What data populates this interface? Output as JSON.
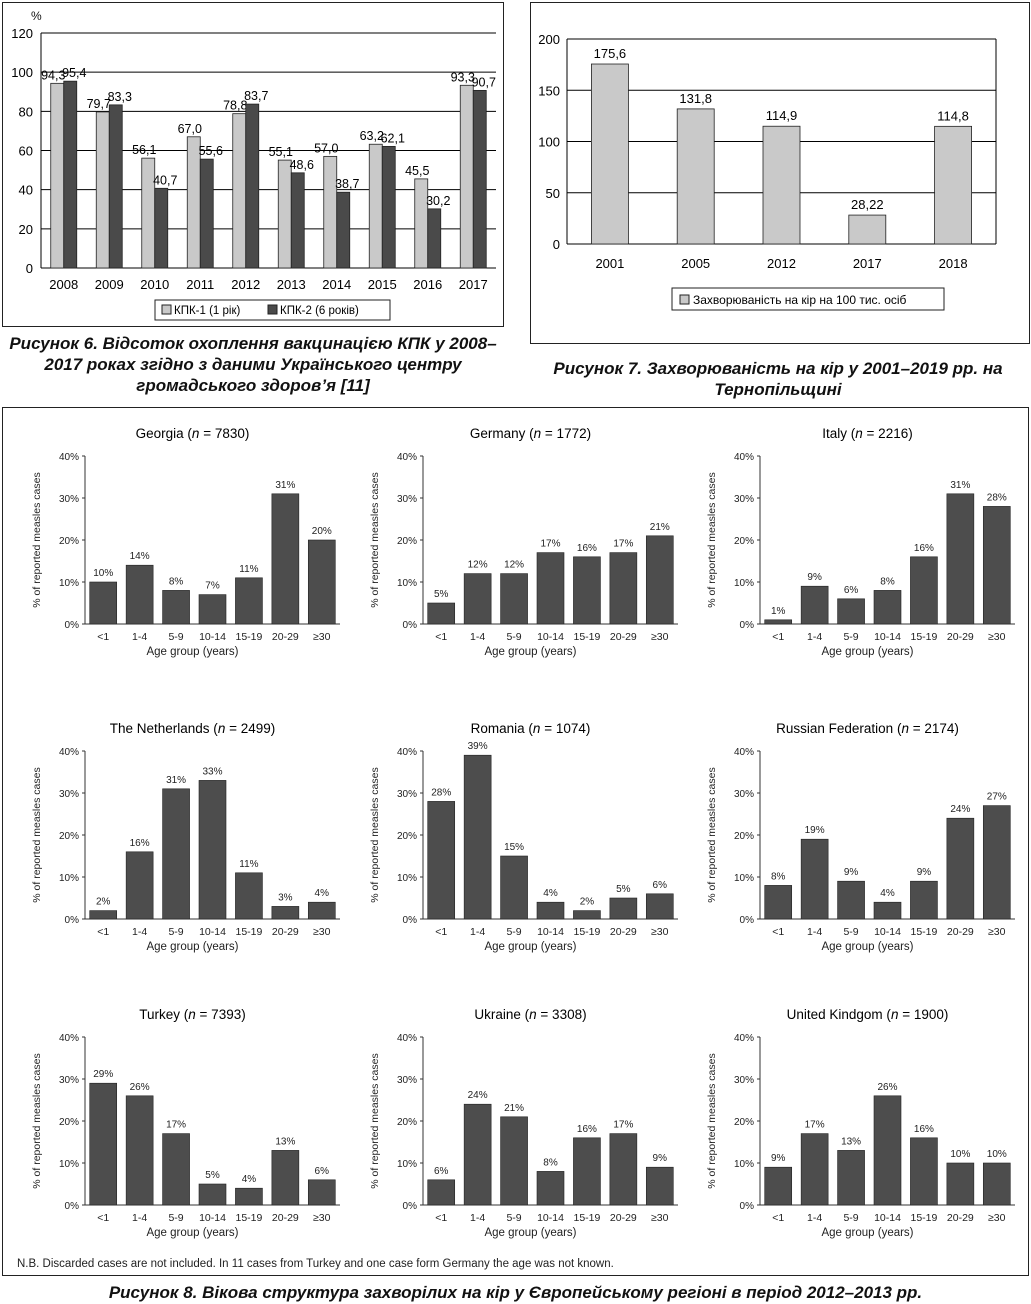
{
  "colors": {
    "kpk1": "#c9c9c9",
    "kpk2": "#4a4a4a",
    "fig7bar": "#c9c9c9",
    "smallbar": "#4d4d4d"
  },
  "fig6": {
    "caption": "Рисунок 6. Відсоток охоплення вакцинацією КПК у 2008–2017 роках згідно з даними Українського центру громадського здоров’я [11]",
    "chart_data": {
      "type": "bar",
      "y_unit": "%",
      "categories": [
        "2008",
        "2009",
        "2010",
        "2011",
        "2012",
        "2013",
        "2014",
        "2015",
        "2016",
        "2017"
      ],
      "series": [
        {
          "name": "КПК-1 (1 рік)",
          "values": [
            94.3,
            79.7,
            56.1,
            67.0,
            78.8,
            55.1,
            57.0,
            63.2,
            45.5,
            93.3
          ],
          "labels": [
            "94,3",
            "79,7",
            "56,1",
            "67,0",
            "78,8",
            "55,1",
            "57,0",
            "63,2",
            "45,5",
            "93,3"
          ]
        },
        {
          "name": "КПК-2 (6 років)",
          "values": [
            95.4,
            83.3,
            40.7,
            55.6,
            83.7,
            48.6,
            38.7,
            62.1,
            30.2,
            90.7
          ],
          "labels": [
            "95,4",
            "83,3",
            "40,7",
            "55,6",
            "83,7",
            "48,6",
            "38,7",
            "62,1",
            "30,2",
            "90,7"
          ]
        }
      ],
      "yticks": [
        "0",
        "20",
        "40",
        "60",
        "80",
        "100",
        "120"
      ],
      "ylim": [
        0,
        120
      ],
      "grid": true,
      "legend": "bottom"
    }
  },
  "fig7": {
    "caption": "Рисунок 7. Захворюваність на кір у 2001–2019 рр. на Тернопільщині",
    "chart_data": {
      "type": "bar",
      "categories": [
        "2001",
        "2005",
        "2012",
        "2017",
        "2018"
      ],
      "series": [
        {
          "name": "Захворюваність на кір на 100 тис. осіб",
          "values": [
            175.6,
            131.8,
            114.9,
            28.22,
            114.8
          ],
          "labels": [
            "175,6",
            "131,8",
            "114,9",
            "28,22",
            "114,8"
          ]
        }
      ],
      "yticks": [
        "0",
        "50",
        "100",
        "150",
        "200"
      ],
      "ylim": [
        0,
        200
      ],
      "grid": true,
      "legend": "bottom"
    }
  },
  "fig8": {
    "caption": "Рисунок 8. Вікова структура захворілих на кір у Європейському регіоні в період 2012–2013 рр.",
    "note": "N.B. Discarded cases are not included. In 11 cases from Turkey and one case form Germany the age was not known.",
    "chart_data": [
      {
        "type": "bar",
        "country": "Georgia",
        "n": "7830",
        "categories": [
          "<1",
          "1-4",
          "5-9",
          "10-14",
          "15-19",
          "20-29",
          "≥30"
        ],
        "values": [
          10,
          14,
          8,
          7,
          11,
          31,
          20
        ],
        "labels": [
          "10%",
          "14%",
          "8%",
          "7%",
          "11%",
          "31%",
          "20%"
        ],
        "ylabel": "% of reported measles cases",
        "xlabel": "Age group (years)",
        "yticks": [
          "0%",
          "10%",
          "20%",
          "30%",
          "40%"
        ],
        "ylim": [
          0,
          40
        ]
      },
      {
        "type": "bar",
        "country": "Germany",
        "n": "1772",
        "categories": [
          "<1",
          "1-4",
          "5-9",
          "10-14",
          "15-19",
          "20-29",
          "≥30"
        ],
        "values": [
          5,
          12,
          12,
          17,
          16,
          17,
          21
        ],
        "labels": [
          "5%",
          "12%",
          "12%",
          "17%",
          "16%",
          "17%",
          "21%"
        ],
        "ylabel": "% of reported measles cases",
        "xlabel": "Age group (years)",
        "yticks": [
          "0%",
          "10%",
          "20%",
          "30%",
          "40%"
        ],
        "ylim": [
          0,
          40
        ]
      },
      {
        "type": "bar",
        "country": "Italy",
        "n": "2216",
        "categories": [
          "<1",
          "1-4",
          "5-9",
          "10-14",
          "15-19",
          "20-29",
          "≥30"
        ],
        "values": [
          1,
          9,
          6,
          8,
          16,
          31,
          28
        ],
        "labels": [
          "1%",
          "9%",
          "6%",
          "8%",
          "16%",
          "31%",
          "28%"
        ],
        "ylabel": "% of reported measles cases",
        "xlabel": "Age group (years)",
        "yticks": [
          "0%",
          "10%",
          "20%",
          "30%",
          "40%"
        ],
        "ylim": [
          0,
          40
        ]
      },
      {
        "type": "bar",
        "country": "The Netherlands",
        "n": "2499",
        "categories": [
          "<1",
          "1-4",
          "5-9",
          "10-14",
          "15-19",
          "20-29",
          "≥30"
        ],
        "values": [
          2,
          16,
          31,
          33,
          11,
          3,
          4
        ],
        "labels": [
          "2%",
          "16%",
          "31%",
          "33%",
          "11%",
          "3%",
          "4%"
        ],
        "ylabel": "% of reported measles cases",
        "xlabel": "Age group (years)",
        "yticks": [
          "0%",
          "10%",
          "20%",
          "30%",
          "40%"
        ],
        "ylim": [
          0,
          40
        ]
      },
      {
        "type": "bar",
        "country": "Romania",
        "n": "1074",
        "categories": [
          "<1",
          "1-4",
          "5-9",
          "10-14",
          "15-19",
          "20-29",
          "≥30"
        ],
        "values": [
          28,
          39,
          15,
          4,
          2,
          5,
          6
        ],
        "labels": [
          "28%",
          "39%",
          "15%",
          "4%",
          "2%",
          "5%",
          "6%"
        ],
        "ylabel": "% of reported measles cases",
        "xlabel": "Age group (years)",
        "yticks": [
          "0%",
          "10%",
          "20%",
          "30%",
          "40%"
        ],
        "ylim": [
          0,
          40
        ]
      },
      {
        "type": "bar",
        "country": "Russian Federation",
        "n": "2174",
        "categories": [
          "<1",
          "1-4",
          "5-9",
          "10-14",
          "15-19",
          "20-29",
          "≥30"
        ],
        "values": [
          8,
          19,
          9,
          4,
          9,
          24,
          27
        ],
        "labels": [
          "8%",
          "19%",
          "9%",
          "4%",
          "9%",
          "24%",
          "27%"
        ],
        "ylabel": "% of reported measles cases",
        "xlabel": "Age group (years)",
        "yticks": [
          "0%",
          "10%",
          "20%",
          "30%",
          "40%"
        ],
        "ylim": [
          0,
          40
        ]
      },
      {
        "type": "bar",
        "country": "Turkey",
        "n": "7393",
        "categories": [
          "<1",
          "1-4",
          "5-9",
          "10-14",
          "15-19",
          "20-29",
          "≥30"
        ],
        "values": [
          29,
          26,
          17,
          5,
          4,
          13,
          6
        ],
        "labels": [
          "29%",
          "26%",
          "17%",
          "5%",
          "4%",
          "13%",
          "6%"
        ],
        "ylabel": "% of reported measles cases",
        "xlabel": "Age group (years)",
        "yticks": [
          "0%",
          "10%",
          "20%",
          "30%",
          "40%"
        ],
        "ylim": [
          0,
          40
        ]
      },
      {
        "type": "bar",
        "country": "Ukraine",
        "n": "3308",
        "categories": [
          "<1",
          "1-4",
          "5-9",
          "10-14",
          "15-19",
          "20-29",
          "≥30"
        ],
        "values": [
          6,
          24,
          21,
          8,
          16,
          17,
          9
        ],
        "labels": [
          "6%",
          "24%",
          "21%",
          "8%",
          "16%",
          "17%",
          "9%"
        ],
        "ylabel": "% of reported measles cases",
        "xlabel": "Age group (years)",
        "yticks": [
          "0%",
          "10%",
          "20%",
          "30%",
          "40%"
        ],
        "ylim": [
          0,
          40
        ]
      },
      {
        "type": "bar",
        "country": "United Kindgom",
        "n": "1900",
        "categories": [
          "<1",
          "1-4",
          "5-9",
          "10-14",
          "15-19",
          "20-29",
          "≥30"
        ],
        "values": [
          9,
          17,
          13,
          26,
          16,
          10,
          10
        ],
        "labels": [
          "9%",
          "17%",
          "13%",
          "26%",
          "16%",
          "10%",
          "10%"
        ],
        "ylabel": "% of reported measles cases",
        "xlabel": "Age group (years)",
        "yticks": [
          "0%",
          "10%",
          "20%",
          "30%",
          "40%"
        ],
        "ylim": [
          0,
          40
        ]
      }
    ]
  }
}
